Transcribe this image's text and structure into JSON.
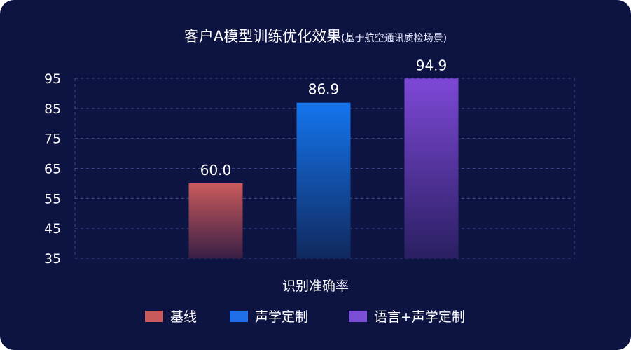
{
  "chart_data": {
    "type": "bar",
    "title": "客户A模型训练优化效果",
    "subtitle": "(基于航空通讯质检场景)",
    "xlabel": "识别准确率",
    "ylabel": "",
    "ylim": [
      35,
      95
    ],
    "yticks": [
      35,
      45,
      55,
      65,
      75,
      85,
      95
    ],
    "grid": true,
    "legend_position": "bottom",
    "categories": [
      "识别准确率"
    ],
    "series": [
      {
        "name": "基线",
        "values": [
          60.0
        ],
        "label": "60.0",
        "color_top": "#c95a5c",
        "color_bottom": "#3a1f45",
        "legend_color": "#c95a5c"
      },
      {
        "name": "声学定制",
        "values": [
          86.9
        ],
        "label": "86.9",
        "color_top": "#1475ee",
        "color_bottom": "#10295e",
        "legend_color": "#1f6fe8"
      },
      {
        "name": "语言+声学定制",
        "values": [
          94.9
        ],
        "label": "94.9",
        "color_top": "#7d48d6",
        "color_bottom": "#2a1f62",
        "legend_color": "#7a4fd6"
      }
    ]
  },
  "colors": {
    "background": "#0e1442",
    "grid": "#3a4a8a",
    "text": "#ffffff"
  }
}
